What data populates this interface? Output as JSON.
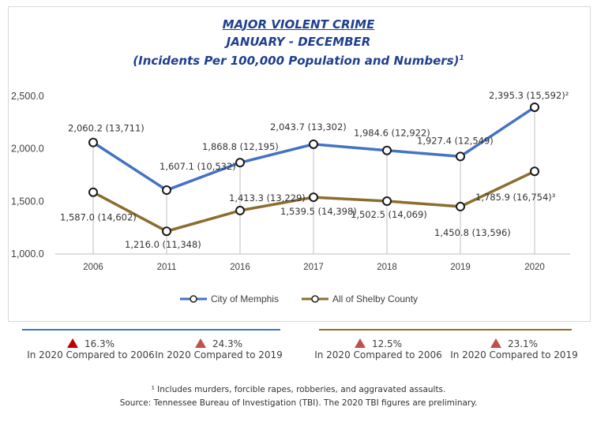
{
  "header": {
    "title": "MAJOR VIOLENT CRIME",
    "subtitle": "JANUARY - DECEMBER",
    "subtitle2": "(Incidents Per 100,000 Population and Numbers)",
    "subtitle2_sup": "1"
  },
  "colors": {
    "memphis": "#4472C4",
    "shelby": "#8B6D2E",
    "memphis_triangle": "#C00000",
    "shelby_triangle": "#C0504D"
  },
  "chart_data": {
    "type": "line",
    "categories": [
      "2006",
      "2011",
      "2016",
      "2017",
      "2018",
      "2019",
      "2020"
    ],
    "ylim": [
      1000,
      2500
    ],
    "yticks": [
      "1,000.0",
      "1,500.0",
      "2,000.0",
      "2,500.0"
    ],
    "grid": "vertical drop lines",
    "legend_position": "bottom",
    "series": [
      {
        "name": "City of Memphis",
        "values": [
          2060.2,
          1607.1,
          1868.8,
          2043.7,
          1984.6,
          1927.4,
          2395.3
        ],
        "labels": [
          "2,060.2 (13,711)",
          "1,607.1 (10,532)",
          "1,868.8 (12,195)",
          "2,043.7 (13,302)",
          "1,984.6 (12,922)",
          "1,927.4 (12,549)",
          "2,395.3 (15,592)²"
        ]
      },
      {
        "name": "All of Shelby County",
        "values": [
          1587.0,
          1216.0,
          1413.3,
          1539.5,
          1502.5,
          1450.8,
          1785.9
        ],
        "labels": [
          "1,587.0 (14,602)",
          "1,216.0 (11,348)",
          "1,413.3 (13,229)",
          "1,539.5 (14,398)",
          "1,502.5 (14,069)",
          "1,450.8 (13,596)",
          "1,785.9 (16,754)³"
        ]
      }
    ]
  },
  "stats": [
    {
      "pct": "16.3%",
      "text": "In 2020 Compared to 2006"
    },
    {
      "pct": "24.3%",
      "text": "In 2020 Compared to 2019"
    },
    {
      "pct": "12.5%",
      "text": "In 2020 Compared to 2006"
    },
    {
      "pct": "23.1%",
      "text": "In 2020 Compared to 2019"
    }
  ],
  "footnotes": {
    "line1": "¹ Includes murders, forcible rapes, robberies, and aggravated assaults.",
    "line2": "Source: Tennessee Bureau of Investigation (TBI).  The 2020 TBI figures are preliminary."
  }
}
